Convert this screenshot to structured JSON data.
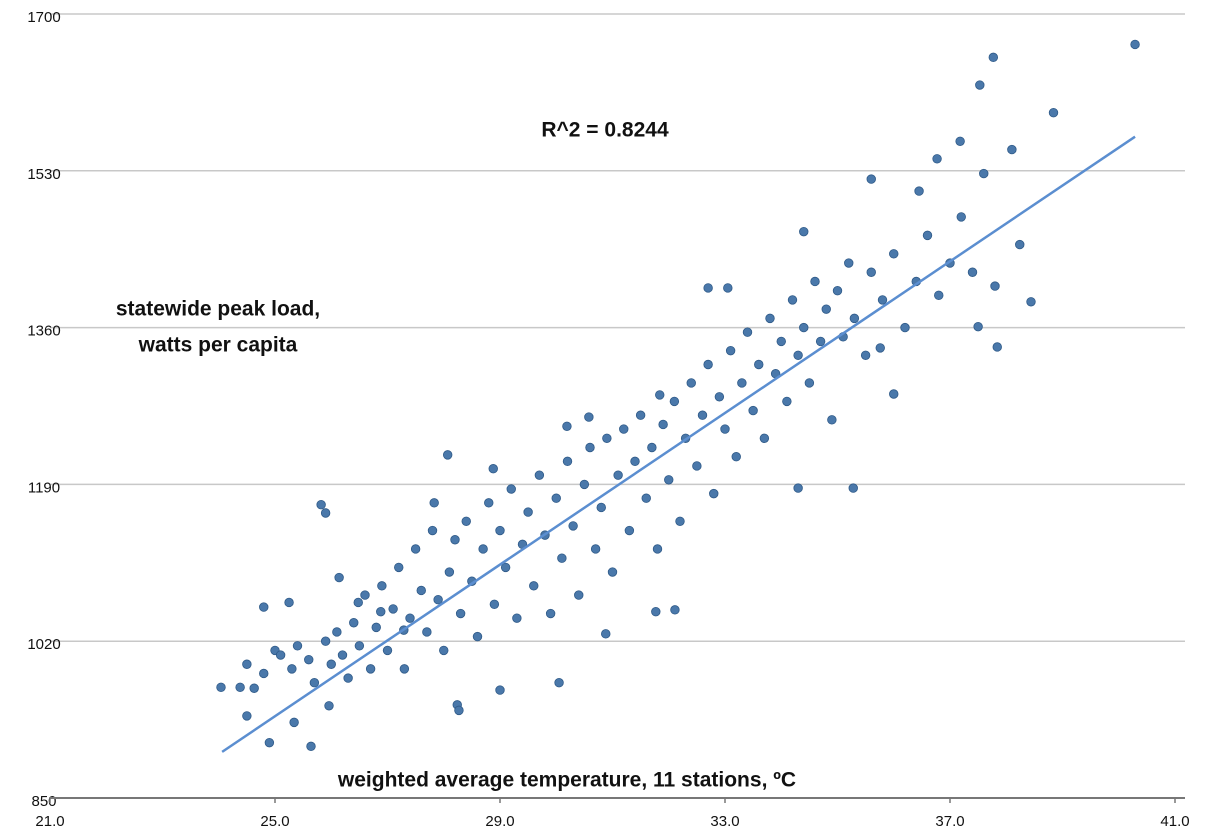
{
  "chart_data": {
    "type": "scatter",
    "annotation": "R^2 = 0.8244",
    "y_label": [
      "statewide peak load,",
      "watts per capita"
    ],
    "x_label": "weighted average temperature, 11 stations, ºC",
    "color": "#4a78aa",
    "grid": true,
    "xlim": [
      21,
      41
    ],
    "ylim": [
      850,
      1700
    ],
    "xticks": [
      {
        "value": 21,
        "label": "21.0"
      },
      {
        "value": 25,
        "label": "25.0"
      },
      {
        "value": 29,
        "label": "29.0"
      },
      {
        "value": 33,
        "label": "33.0"
      },
      {
        "value": 37,
        "label": "37.0"
      },
      {
        "value": 41,
        "label": "41.0"
      }
    ],
    "yticks": [
      850,
      1020,
      1190,
      1360,
      1530,
      1700
    ],
    "trend_line": {
      "color": "#5b8ed0",
      "x": [
        24.06,
        40.29
      ],
      "y": [
        900,
        1567
      ]
    },
    "x": [
      24.04,
      24.38,
      24.5,
      24.63,
      24.8,
      24.9,
      25.25,
      25.34,
      25.64,
      25.82,
      25.9,
      26.14,
      28.07,
      25.96,
      26.48,
      26.88,
      27.29,
      27.83,
      28.24,
      28.27,
      28.88,
      29.0,
      30.05,
      30.58,
      30.19,
      30.88,
      31.84,
      31.77,
      32.11,
      32.7,
      33.05,
      34.3,
      34.4,
      35.28,
      35.6,
      35.76,
      36.0,
      36.45,
      36.77,
      37.18,
      37.53,
      37.77,
      37.6,
      37.5,
      37.84,
      38.24,
      38.44,
      38.84,
      40.29,
      37.8,
      38.1,
      24.5,
      24.8,
      25.0,
      25.1,
      25.3,
      25.4,
      25.6,
      25.7,
      25.9,
      26.0,
      26.1,
      26.2,
      26.3,
      26.4,
      26.5,
      26.6,
      26.7,
      26.8,
      26.9,
      27.0,
      27.1,
      27.2,
      27.3,
      27.4,
      27.5,
      27.6,
      27.7,
      27.8,
      27.9,
      28.0,
      28.1,
      28.2,
      28.3,
      28.4,
      28.5,
      28.6,
      28.7,
      28.8,
      28.9,
      29.0,
      29.1,
      29.2,
      29.3,
      29.4,
      29.5,
      29.6,
      29.7,
      29.8,
      29.9,
      30.0,
      30.1,
      30.2,
      30.3,
      30.4,
      30.5,
      30.6,
      30.7,
      30.8,
      30.9,
      31.0,
      31.1,
      31.2,
      31.3,
      31.4,
      31.5,
      31.6,
      31.7,
      31.8,
      31.9,
      32.0,
      32.1,
      32.2,
      32.3,
      32.4,
      32.5,
      32.6,
      32.7,
      32.8,
      32.9,
      33.0,
      33.1,
      33.2,
      33.3,
      33.4,
      33.5,
      33.6,
      33.7,
      33.8,
      33.9,
      34.0,
      34.1,
      34.2,
      34.3,
      34.4,
      34.5,
      34.6,
      34.7,
      34.8,
      34.9,
      35.0,
      35.1,
      35.2,
      35.3,
      35.5,
      35.6,
      35.8,
      36.0,
      36.2,
      36.4,
      36.6,
      36.8,
      37.0,
      37.2,
      37.4
    ],
    "values": [
      970,
      970,
      939,
      969,
      1057,
      910,
      1062,
      932,
      906,
      1168,
      1159,
      1089,
      1222,
      950,
      1062,
      1052,
      1032,
      1170,
      951,
      945,
      1207,
      967,
      975,
      1263,
      1253,
      1028,
      1287,
      1052,
      1054,
      1403,
      1403,
      1186,
      1464,
      1186,
      1521,
      1338,
      1288,
      1508,
      1543,
      1562,
      1623,
      1653,
      1527,
      1361,
      1339,
      1450,
      1388,
      1593,
      1667,
      1405,
      1553,
      995,
      985,
      1010,
      1005,
      990,
      1015,
      1000,
      975,
      1020,
      995,
      1030,
      1005,
      980,
      1040,
      1015,
      1070,
      990,
      1035,
      1080,
      1010,
      1055,
      1100,
      990,
      1045,
      1120,
      1075,
      1030,
      1140,
      1065,
      1010,
      1095,
      1130,
      1050,
      1150,
      1085,
      1025,
      1120,
      1170,
      1060,
      1140,
      1100,
      1185,
      1045,
      1125,
      1160,
      1080,
      1200,
      1135,
      1050,
      1175,
      1110,
      1215,
      1145,
      1070,
      1190,
      1230,
      1120,
      1165,
      1240,
      1095,
      1200,
      1250,
      1140,
      1215,
      1265,
      1175,
      1230,
      1120,
      1255,
      1195,
      1280,
      1150,
      1240,
      1300,
      1210,
      1265,
      1320,
      1180,
      1285,
      1250,
      1335,
      1220,
      1300,
      1355,
      1270,
      1320,
      1240,
      1370,
      1310,
      1345,
      1280,
      1390,
      1330,
      1360,
      1300,
      1410,
      1345,
      1380,
      1260,
      1400,
      1350,
      1430,
      1370,
      1330,
      1420,
      1390,
      1440,
      1360,
      1410,
      1460,
      1395,
      1430,
      1480,
      1420
    ]
  }
}
